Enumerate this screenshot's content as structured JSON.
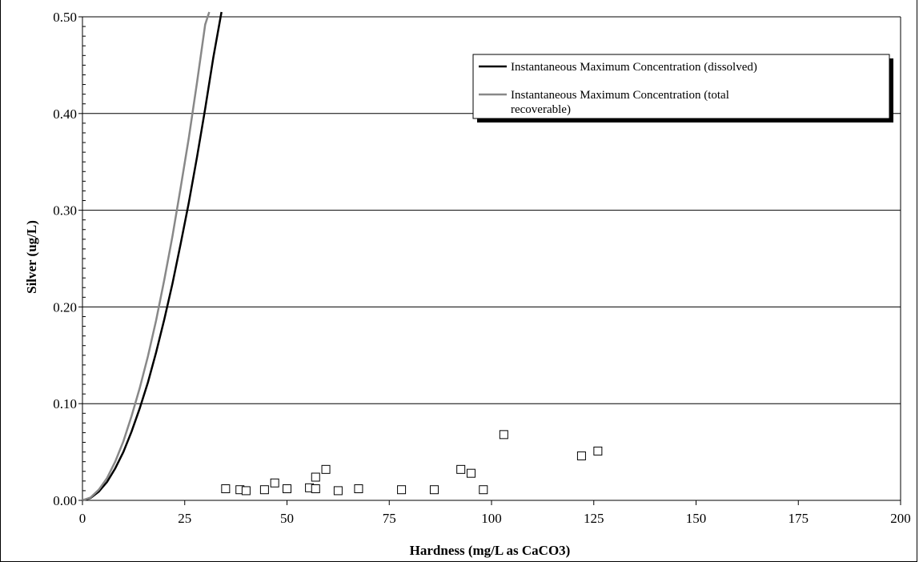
{
  "chart_data": {
    "type": "scatter",
    "title": "",
    "xlabel": "Hardness (mg/L as CaCO3)",
    "ylabel": "Silver (ug/L)",
    "xlim": [
      0,
      200
    ],
    "ylim": [
      0,
      0.5
    ],
    "x_ticks": [
      "0",
      "25",
      "50",
      "75",
      "100",
      "125",
      "150",
      "175",
      "200"
    ],
    "y_ticks": [
      "0.00",
      "0.10",
      "0.20",
      "0.30",
      "0.40",
      "0.50"
    ],
    "horizontal_grid": true,
    "legend_position": "top-right",
    "series": [
      {
        "name": "Instantaneous Maximum Concentration (dissolved)",
        "kind": "line",
        "color": "#000000",
        "x": [
          0,
          2,
          4,
          6,
          8,
          10,
          12,
          14,
          16,
          18,
          20,
          22,
          24,
          26,
          28,
          30,
          32,
          34
        ],
        "y": [
          0,
          0.0025,
          0.009,
          0.019,
          0.033,
          0.05,
          0.071,
          0.095,
          0.122,
          0.153,
          0.187,
          0.224,
          0.265,
          0.308,
          0.355,
          0.405,
          0.458,
          0.505
        ]
      },
      {
        "name": "Instantaneous Maximum Concentration (total recoverable)",
        "kind": "line",
        "color": "#888888",
        "x": [
          0,
          2,
          4,
          6,
          8,
          10,
          12,
          14,
          16,
          18,
          20,
          22,
          24,
          26,
          28,
          30,
          31
        ],
        "y": [
          0,
          0.003,
          0.011,
          0.023,
          0.04,
          0.061,
          0.087,
          0.116,
          0.149,
          0.186,
          0.228,
          0.273,
          0.323,
          0.375,
          0.432,
          0.492,
          0.505
        ]
      },
      {
        "name": "",
        "kind": "points",
        "color": "#000000",
        "x": [
          35,
          38.5,
          40,
          44.5,
          47,
          50,
          55.5,
          57,
          57,
          59.5,
          62.5,
          67.5,
          78,
          86,
          92.5,
          95,
          98,
          103,
          122,
          126
        ],
        "y": [
          0.012,
          0.011,
          0.01,
          0.011,
          0.018,
          0.012,
          0.013,
          0.024,
          0.012,
          0.032,
          0.01,
          0.012,
          0.011,
          0.011,
          0.032,
          0.028,
          0.011,
          0.068,
          0.046,
          0.051
        ]
      }
    ],
    "legend": {
      "line1": "Instantaneous Maximum Concentration (dissolved)",
      "line2a": "Instantaneous Maximum Concentration (total",
      "line2b": "recoverable)"
    }
  }
}
